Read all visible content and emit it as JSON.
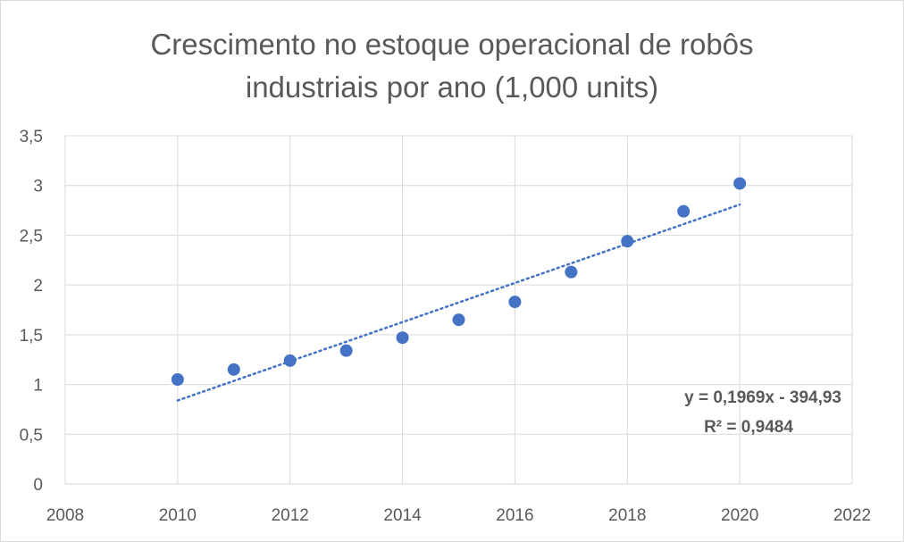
{
  "chart_data": {
    "type": "scatter",
    "title_line1": "Crescimento no estoque operacional de robôs",
    "title_line2": "industriais por ano (1,000 units)",
    "xlim": [
      2008,
      2022
    ],
    "ylim": [
      0,
      3.5
    ],
    "x_ticks": [
      2008,
      2010,
      2012,
      2014,
      2016,
      2018,
      2020,
      2022
    ],
    "y_ticks": [
      0,
      0.5,
      1,
      1.5,
      2,
      2.5,
      3,
      3.5
    ],
    "y_tick_labels": [
      "0",
      "0,5",
      "1",
      "1,5",
      "2",
      "2,5",
      "3",
      "3,5"
    ],
    "grid": true,
    "series": [
      {
        "x": [
          2010,
          2011,
          2012,
          2013,
          2014,
          2015,
          2016,
          2017,
          2018,
          2019,
          2020
        ],
        "y": [
          1.05,
          1.15,
          1.24,
          1.34,
          1.47,
          1.65,
          1.83,
          2.13,
          2.44,
          2.74,
          3.02
        ],
        "color": "#4472c4"
      }
    ],
    "trendline": {
      "type": "linear",
      "style": "dotted",
      "color": "#4472c4",
      "slope": 0.1969,
      "intercept": -394.93,
      "x_range": [
        2010,
        2020
      ],
      "equation_label": "y = 0,1969x - 394,93",
      "r2_label": "R² = 0,9484"
    }
  }
}
